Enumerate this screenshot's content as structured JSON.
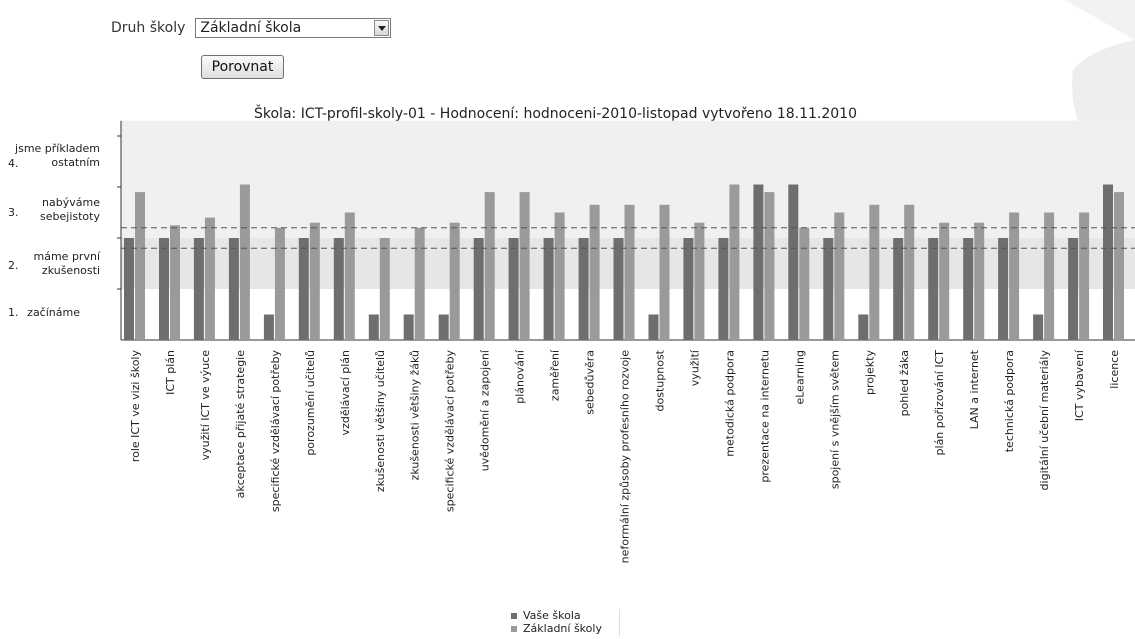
{
  "form": {
    "label": "Druh školy",
    "select_value": "Základní škola",
    "compare_label": "Porovnat"
  },
  "chart_data": {
    "type": "bar",
    "title": "Škola: ICT-profil-skoly-01 - Hodnocení: hodnoceni-2010-listopad vytvořeno 18.11.2010",
    "ylim": [
      0,
      4
    ],
    "y_ticks": [
      {
        "num": "4.",
        "label": "jsme příkladem ostatním"
      },
      {
        "num": "3.",
        "label": "nabýváme sebejistoty"
      },
      {
        "num": "2.",
        "label": "máme první zkušenosti"
      },
      {
        "num": "1.",
        "label": "začínáme"
      }
    ],
    "categories": [
      "role ICT ve vizi školy",
      "ICT plán",
      "využití ICT ve výuce",
      "akceptace přijaté strategie",
      "specifické vzdělávací potřeby",
      "porozumění učitelů",
      "vzdělávací plán",
      "zkušenosti většiny učitelů",
      "zkušenosti většiny žáků",
      "specifické vzdělávací potřeby",
      "uvědomění a zapojení",
      "plánování",
      "zaměření",
      "sebedůvěra",
      "neformální způsoby profesního rozvoje",
      "dostupnost",
      "využití",
      "metodická podpora",
      "prezentace na internetu",
      "eLearning",
      "spojení s vnějším světem",
      "projekty",
      "pohled žáka",
      "plán pořizování ICT",
      "LAN a internet",
      "technická podpora",
      "digitální učební materiály",
      "ICT vybavení",
      "licence"
    ],
    "series": [
      {
        "name": "Vaše škola",
        "color": "#6e6e6e",
        "values": [
          2,
          2,
          2,
          2,
          0.5,
          2,
          2,
          0.5,
          0.5,
          0.5,
          2,
          2,
          2,
          2,
          2,
          0.5,
          2,
          2,
          3.05,
          3.05,
          2,
          0.5,
          2,
          2,
          2,
          2,
          0.5,
          2,
          3.05
        ]
      },
      {
        "name": "Základní školy",
        "color": "#9a9a9a",
        "values": [
          2.9,
          2.25,
          2.4,
          3.05,
          2.2,
          2.3,
          2.5,
          2,
          2.2,
          2.3,
          2.9,
          2.9,
          2.5,
          2.65,
          2.65,
          2.65,
          2.3,
          3.05,
          2.9,
          2.2,
          2.5,
          2.65,
          2.65,
          2.3,
          2.3,
          2.5,
          2.5,
          2.5,
          2.9
        ]
      }
    ],
    "reference_lines": [
      2.2,
      1.8
    ],
    "legend_position": "bottom"
  },
  "colors": {
    "band_light": "#f0f0f0",
    "band_mid": "#e6e6e6",
    "axis": "#333333"
  }
}
